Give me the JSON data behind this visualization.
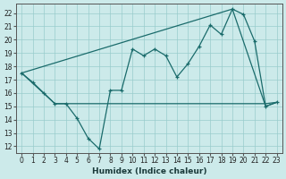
{
  "xlabel": "Humidex (Indice chaleur)",
  "bg_color": "#cceaea",
  "grid_color": "#99cccc",
  "line_color": "#1a6b6b",
  "xlim": [
    -0.5,
    23.5
  ],
  "ylim": [
    11.5,
    22.7
  ],
  "xticks": [
    0,
    1,
    2,
    3,
    4,
    5,
    6,
    7,
    8,
    9,
    10,
    11,
    12,
    13,
    14,
    15,
    16,
    17,
    18,
    19,
    20,
    21,
    22,
    23
  ],
  "yticks": [
    12,
    13,
    14,
    15,
    16,
    17,
    18,
    19,
    20,
    21,
    22
  ],
  "line1_x": [
    0,
    1,
    2,
    3,
    4,
    5,
    6,
    7,
    8,
    9,
    10,
    11,
    12,
    13,
    14,
    15,
    16,
    17,
    18,
    19,
    20,
    21,
    22,
    23
  ],
  "line1_y": [
    17.5,
    16.8,
    16.0,
    15.2,
    15.2,
    14.1,
    12.6,
    11.8,
    16.2,
    16.2,
    19.3,
    18.8,
    19.3,
    18.8,
    17.2,
    18.2,
    19.5,
    21.1,
    20.4,
    22.3,
    21.9,
    19.9,
    15.0,
    15.3
  ],
  "line2_x": [
    0,
    19,
    22,
    23
  ],
  "line2_y": [
    17.5,
    22.3,
    15.0,
    15.3
  ],
  "line3_x": [
    0,
    3,
    4,
    19,
    22,
    23
  ],
  "line3_y": [
    17.5,
    15.2,
    15.2,
    15.2,
    15.2,
    15.3
  ]
}
